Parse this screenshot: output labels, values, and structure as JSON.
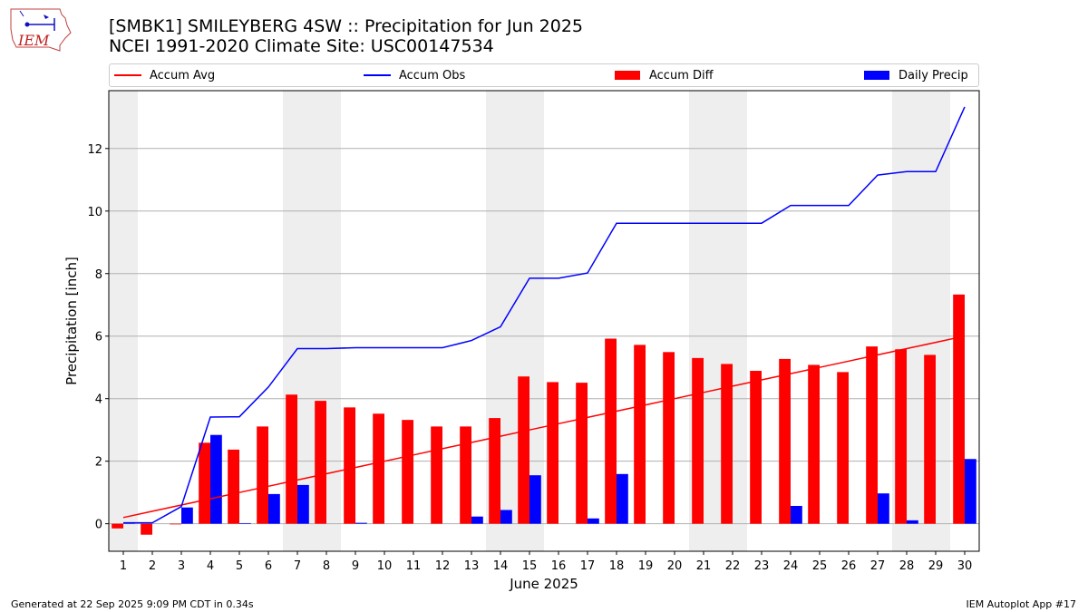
{
  "header": {
    "title_line1": "[SMBK1] SMILEYBERG 4SW :: Precipitation for Jun 2025",
    "title_line2": "NCEI 1991-2020 Climate Site: USC00147534",
    "logo_text": "IEM"
  },
  "legend": {
    "accum_avg": "Accum Avg",
    "accum_obs": "Accum Obs",
    "accum_diff": "Accum Diff",
    "daily_precip": "Daily Precip"
  },
  "footer": {
    "left": "Generated at 22 Sep 2025 9:09 PM CDT in 0.34s",
    "right": "IEM Autoplot App #17"
  },
  "colors": {
    "accum_avg": "#ff0000",
    "accum_obs": "#0000ff",
    "accum_diff": "#ff0000",
    "daily_precip": "#0000ff",
    "weekend_shade": "#eeeeee",
    "grid": "#b0b0b0"
  },
  "chart_data": {
    "type": "bar",
    "xlabel": "June 2025",
    "ylabel": "Precipitation [inch]",
    "x": [
      1,
      2,
      3,
      4,
      5,
      6,
      7,
      8,
      9,
      10,
      11,
      12,
      13,
      14,
      15,
      16,
      17,
      18,
      19,
      20,
      21,
      22,
      23,
      24,
      25,
      26,
      27,
      28,
      29,
      30
    ],
    "xlim": [
      0.5,
      30.5
    ],
    "ylim": [
      -0.88,
      13.85
    ],
    "yticks": [
      0,
      2,
      4,
      6,
      8,
      10,
      12
    ],
    "grid": "horizontal",
    "legend_position": "top",
    "shaded_days": [
      1,
      7,
      8,
      14,
      15,
      21,
      22,
      28,
      29
    ],
    "series": [
      {
        "name": "Accum Avg",
        "kind": "line",
        "values": [
          0.2,
          0.4,
          0.6,
          0.8,
          1.0,
          1.2,
          1.4,
          1.6,
          1.8,
          2.0,
          2.2,
          2.4,
          2.6,
          2.8,
          3.0,
          3.2,
          3.4,
          3.6,
          3.8,
          4.0,
          4.2,
          4.4,
          4.6,
          4.8,
          5.0,
          5.2,
          5.4,
          5.6,
          5.8,
          6.0
        ]
      },
      {
        "name": "Accum Obs",
        "kind": "line",
        "values": [
          0.03,
          0.03,
          0.55,
          3.41,
          3.42,
          4.37,
          5.6,
          5.6,
          5.63,
          5.63,
          5.63,
          5.63,
          5.86,
          6.3,
          7.85,
          7.85,
          8.02,
          9.61,
          9.61,
          9.61,
          9.61,
          9.61,
          9.61,
          10.18,
          10.18,
          10.18,
          11.15,
          11.26,
          11.26,
          13.33
        ]
      },
      {
        "name": "Accum Diff",
        "kind": "bar",
        "values": [
          -0.15,
          -0.35,
          -0.02,
          2.59,
          2.37,
          3.11,
          4.13,
          3.93,
          3.72,
          3.52,
          3.32,
          3.11,
          3.11,
          3.38,
          4.71,
          4.53,
          4.51,
          5.92,
          5.72,
          5.49,
          5.3,
          5.11,
          4.89,
          5.27,
          5.08,
          4.85,
          5.67,
          5.58,
          5.4,
          7.33
        ]
      },
      {
        "name": "Daily Precip",
        "kind": "bar",
        "values": [
          0.03,
          0.0,
          0.52,
          2.84,
          0.02,
          0.95,
          1.24,
          0.0,
          0.03,
          0.0,
          0.0,
          0.0,
          0.23,
          0.44,
          1.55,
          0.0,
          0.17,
          1.59,
          0.0,
          0.0,
          0.0,
          0.0,
          0.0,
          0.57,
          0.0,
          0.0,
          0.97,
          0.11,
          0.0,
          2.07
        ]
      }
    ]
  }
}
